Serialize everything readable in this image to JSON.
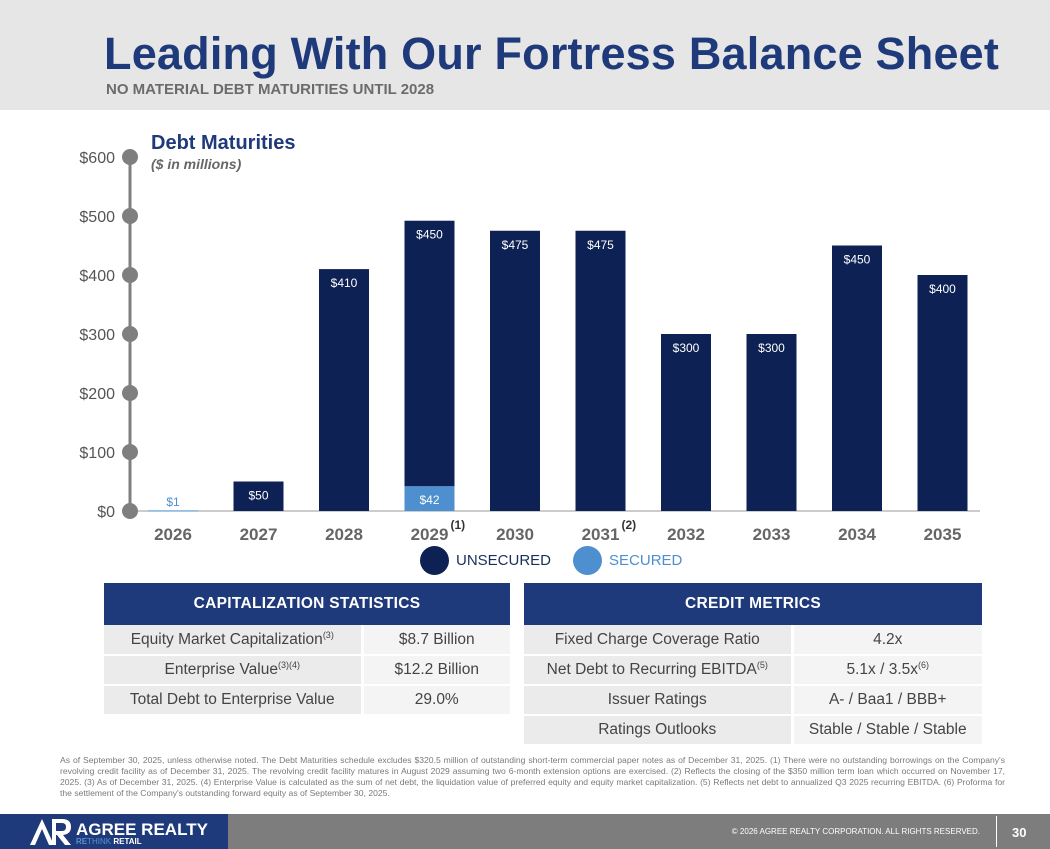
{
  "title": "Leading With Our Fortress Balance Sheet",
  "subtitle": "NO MATERIAL DEBT MATURITIES UNTIL 2028",
  "colors": {
    "unsecured": "#0e2154",
    "secured": "#4d8fcf",
    "brand": "#1f3a7a"
  },
  "chart_data": {
    "type": "bar",
    "stacked": true,
    "title": "Debt Maturities",
    "subtitle": "($ in millions)",
    "categories": [
      "2026",
      "2027",
      "2028",
      "2029",
      "2030",
      "2031",
      "2032",
      "2033",
      "2034",
      "2035"
    ],
    "category_notes": [
      "",
      "",
      "",
      "(1)",
      "",
      "(2)",
      "",
      "",
      "",
      ""
    ],
    "series": [
      {
        "name": "SECURED",
        "values": [
          1,
          0,
          0,
          42,
          0,
          0,
          0,
          0,
          0,
          0
        ]
      },
      {
        "name": "UNSECURED",
        "values": [
          0,
          50,
          410,
          450,
          475,
          475,
          300,
          300,
          450,
          400
        ]
      }
    ],
    "data_labels": {
      "secured": [
        "$1",
        "",
        "",
        "$42",
        "",
        "",
        "",
        "",
        "",
        ""
      ],
      "unsecured": [
        "",
        "$50",
        "$410",
        "$450",
        "$475",
        "$475",
        "$300",
        "$300",
        "$450",
        "$400"
      ]
    },
    "ylim": [
      0,
      600
    ],
    "yticks": [
      0,
      100,
      200,
      300,
      400,
      500,
      600
    ],
    "ytick_labels": [
      "$0",
      "$100",
      "$200",
      "$300",
      "$400",
      "$500",
      "$600"
    ],
    "xlabel": "",
    "ylabel": "",
    "legend": [
      "UNSECURED",
      "SECURED"
    ],
    "legend_position": "bottom"
  },
  "capitalization": {
    "header": "CAPITALIZATION STATISTICS",
    "rows": [
      {
        "label": "Equity Market Capitalization",
        "sup": "(3)",
        "value": "$8.7 Billion"
      },
      {
        "label": "Enterprise Value",
        "sup": "(3)(4)",
        "value": "$12.2 Billion"
      },
      {
        "label": "Total Debt to Enterprise Value",
        "sup": "",
        "value": "29.0%"
      }
    ]
  },
  "credit": {
    "header": "CREDIT METRICS",
    "rows": [
      {
        "label": "Fixed Charge Coverage Ratio",
        "sup": "",
        "value": "4.2x",
        "vsup": ""
      },
      {
        "label": "Net Debt to Recurring EBITDA",
        "sup": "(5)",
        "value": "5.1x / 3.5x",
        "vsup": "(6)"
      },
      {
        "label": "Issuer Ratings",
        "sup": "",
        "value": "A- / Baa1 / BBB+",
        "vsup": ""
      },
      {
        "label": "Ratings Outlooks",
        "sup": "",
        "value": "Stable / Stable / Stable",
        "vsup": ""
      }
    ]
  },
  "footnote": "As of September 30, 2025, unless otherwise noted. The Debt Maturities schedule excludes $320.5 million of outstanding short-term commercial paper notes as of December 31, 2025. (1) There were no outstanding borrowings on the Company's revolving credit facility as of December 31, 2025. The revolving credit facility matures in August 2029 assuming two 6-month extension options are exercised. (2) Reflects the closing of the $350 million term loan which occurred on November 17, 2025. (3) As of December 31, 2025. (4) Enterprise Value is calculated as the sum of net debt, the liquidation value of preferred equity and equity market capitalization. (5) Reflects net debt to annualized Q3 2025 recurring EBITDA. (6) Proforma for the settlement of the Company's outstanding forward equity as of September 30, 2025.",
  "footer": {
    "logo_name": "AGREE REALTY",
    "tagline_re": "RE",
    "tagline_think": "THINK",
    "tagline_retail": "RETAIL",
    "copyright": "© 2026 AGREE REALTY CORPORATION. ALL RIGHTS RESERVED.",
    "page_number": "30"
  }
}
